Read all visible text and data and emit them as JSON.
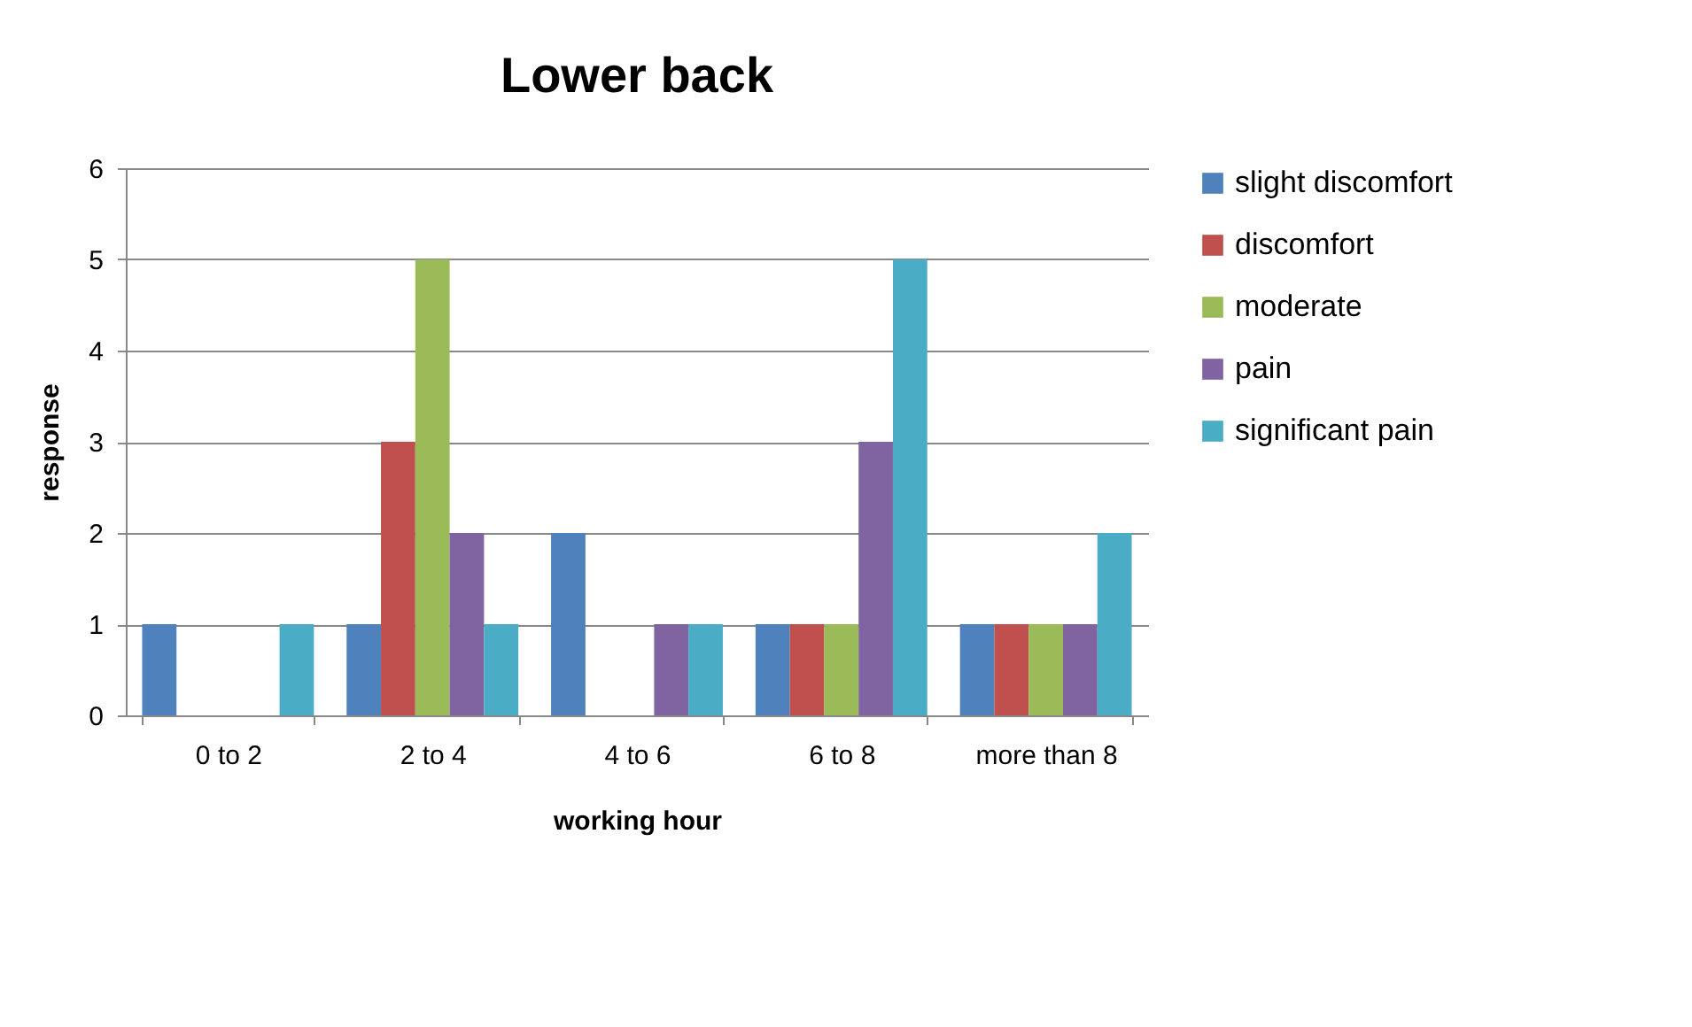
{
  "chart_data": {
    "type": "bar",
    "title": "Lower back",
    "xlabel": "working hour",
    "ylabel": "response",
    "categories": [
      "0 to 2",
      "2 to 4",
      "4 to 6",
      "6 to 8",
      "more than 8"
    ],
    "series": [
      {
        "name": "slight discomfort",
        "color": "#4f81bd",
        "values": [
          1,
          1,
          2,
          1,
          1
        ]
      },
      {
        "name": "discomfort",
        "color": "#c0504d",
        "values": [
          0,
          3,
          0,
          1,
          1
        ]
      },
      {
        "name": "moderate",
        "color": "#9bbb59",
        "values": [
          0,
          5,
          0,
          1,
          1
        ]
      },
      {
        "name": "pain",
        "color": "#8064a2",
        "values": [
          0,
          2,
          1,
          3,
          1
        ]
      },
      {
        "name": "significant pain",
        "color": "#4bacc6",
        "values": [
          1,
          1,
          1,
          5,
          2
        ]
      }
    ],
    "ylim": [
      0,
      6
    ],
    "yticks": [
      0,
      1,
      2,
      3,
      4,
      5,
      6
    ],
    "grid": "y",
    "legend": "right"
  }
}
